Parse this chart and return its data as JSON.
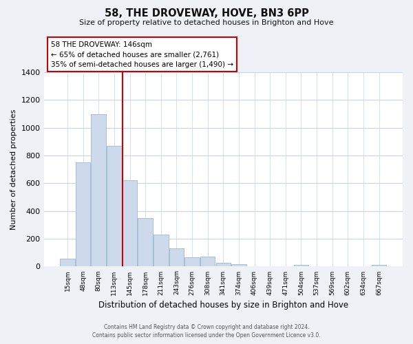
{
  "title": "58, THE DROVEWAY, HOVE, BN3 6PP",
  "subtitle": "Size of property relative to detached houses in Brighton and Hove",
  "xlabel": "Distribution of detached houses by size in Brighton and Hove",
  "ylabel": "Number of detached properties",
  "bar_labels": [
    "15sqm",
    "48sqm",
    "80sqm",
    "113sqm",
    "145sqm",
    "178sqm",
    "211sqm",
    "243sqm",
    "276sqm",
    "308sqm",
    "341sqm",
    "374sqm",
    "406sqm",
    "439sqm",
    "471sqm",
    "504sqm",
    "537sqm",
    "569sqm",
    "602sqm",
    "634sqm",
    "667sqm"
  ],
  "bar_values": [
    55,
    750,
    1095,
    870,
    620,
    348,
    228,
    133,
    65,
    70,
    25,
    18,
    0,
    0,
    0,
    10,
    0,
    0,
    0,
    0,
    10
  ],
  "bar_color": "#ccdaeb",
  "bar_edge_color": "#a8bfd4",
  "vline_color": "#cc0000",
  "vline_x_index": 4,
  "annotation_title": "58 THE DROVEWAY: 146sqm",
  "annotation_line1": "← 65% of detached houses are smaller (2,761)",
  "annotation_line2": "35% of semi-detached houses are larger (1,490) →",
  "annotation_box_color": "#ffffff",
  "annotation_box_edge": "#cc0000",
  "ylim": [
    0,
    1400
  ],
  "yticks": [
    0,
    200,
    400,
    600,
    800,
    1000,
    1200,
    1400
  ],
  "footnote1": "Contains HM Land Registry data © Crown copyright and database right 2024.",
  "footnote2": "Contains public sector information licensed under the Open Government Licence v3.0.",
  "bg_color": "#eef2f7",
  "plot_bg_color": "#ffffff",
  "grid_color": "#c5d5e5"
}
